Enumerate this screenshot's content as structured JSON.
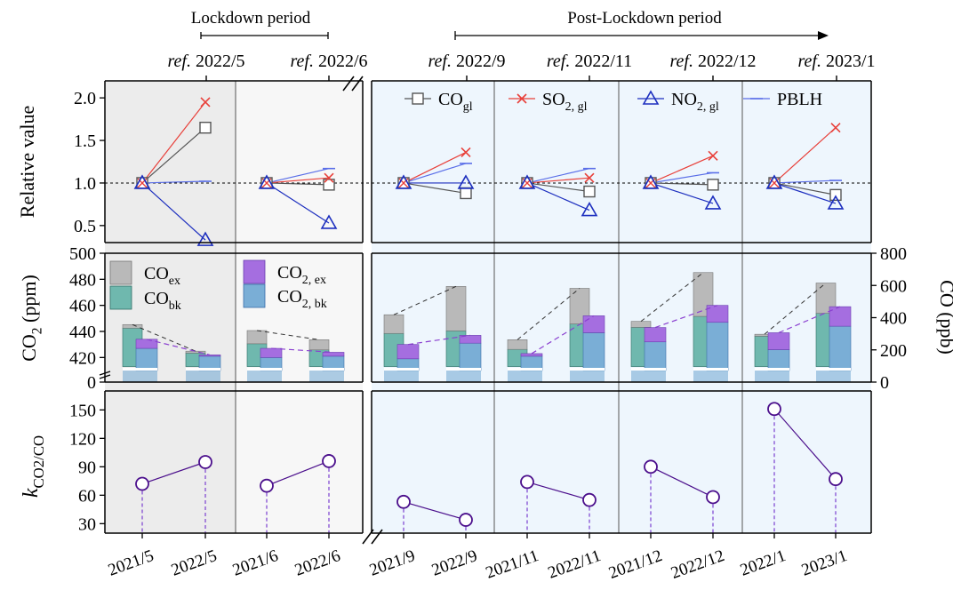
{
  "chart_data": {
    "type": "line",
    "periods": {
      "lockdown": "Lockdown period",
      "post_lockdown": "Post-Lockdown period"
    },
    "ref_prefix": "ref.",
    "ref_labels": [
      "2022/5",
      "2022/6",
      "2022/9",
      "2022/11",
      "2022/12",
      "2023/1"
    ],
    "categories": [
      "2021/5",
      "2022/5",
      "2021/6",
      "2022/6",
      "2021/9",
      "2022/9",
      "2021/11",
      "2022/11",
      "2021/12",
      "2022/12",
      "2022/1",
      "2023/1"
    ],
    "colors": {
      "co": "#555555",
      "so2": "#e8403a",
      "no2": "#1d2fbf",
      "pblh": "#5a6ee8",
      "co_ex": "#b9b9b9",
      "co_bk": "#6fb8ae",
      "co2_ex": "#a56ee0",
      "co2_bk": "#7aaed6",
      "k_line": "#4b0f8c",
      "lockdown_bg1": "#ececec",
      "lockdown_bg2": "#f7f7f7",
      "post_bg": "#eef6fd"
    },
    "top_panel": {
      "ylabel": "Relative value",
      "ylim": [
        0.3,
        2.2
      ],
      "yticks": [
        "0.5",
        "1.0",
        "1.5",
        "2.0"
      ],
      "legend": [
        {
          "main": "CO",
          "sub": "gl"
        },
        {
          "main": "SO",
          "sub": "2, gl"
        },
        {
          "main": "NO",
          "sub": "2, gl"
        },
        {
          "main": "PBLH",
          "sub": ""
        }
      ],
      "series": {
        "co": [
          1.65,
          0.98,
          0.88,
          0.9,
          0.98,
          0.86
        ],
        "so2": [
          1.95,
          1.06,
          1.36,
          1.06,
          1.32,
          1.65
        ],
        "no2": [
          0.33,
          0.53,
          1.0,
          0.68,
          0.76,
          0.76
        ],
        "pblh": [
          1.02,
          1.17,
          1.23,
          1.17,
          1.12,
          1.03
        ]
      }
    },
    "middle_panel": {
      "ylabel_left": {
        "main": "CO",
        "sub": "2",
        "tail": " (ppm)"
      },
      "ylabel_right": "CO (ppb)",
      "left_ticks": [
        "0",
        "420",
        "440",
        "460",
        "480",
        "500"
      ],
      "right_ticks": [
        "0",
        "200",
        "400",
        "600",
        "800"
      ],
      "legend": [
        {
          "main": "CO",
          "sub": "ex"
        },
        {
          "main": "CO",
          "sub": "bk"
        },
        {
          "main": "CO",
          "sub": "2, ex"
        },
        {
          "main": "CO",
          "sub": "2, bk"
        }
      ],
      "co2_bk": [
        427,
        421,
        420,
        421,
        419,
        431,
        421,
        439,
        432,
        447,
        426,
        444
      ],
      "co2_total": [
        434,
        422,
        427,
        424,
        430,
        437,
        423,
        452,
        443,
        460,
        439,
        459
      ],
      "co_bk": [
        335,
        180,
        238,
        200,
        302,
        318,
        203,
        361,
        340,
        408,
        285,
        427
      ],
      "co_total": [
        357,
        192,
        320,
        263,
        418,
        594,
        263,
        582,
        377,
        680,
        297,
        615
      ]
    },
    "bottom_panel": {
      "ylabel": {
        "main": "k",
        "sub": "CO2/CO"
      },
      "ylim": [
        20,
        170
      ],
      "yticks": [
        "30",
        "60",
        "90",
        "120",
        "150"
      ],
      "values": [
        72,
        95,
        70,
        96,
        53,
        34,
        74,
        55,
        90,
        58,
        151,
        77
      ]
    }
  }
}
